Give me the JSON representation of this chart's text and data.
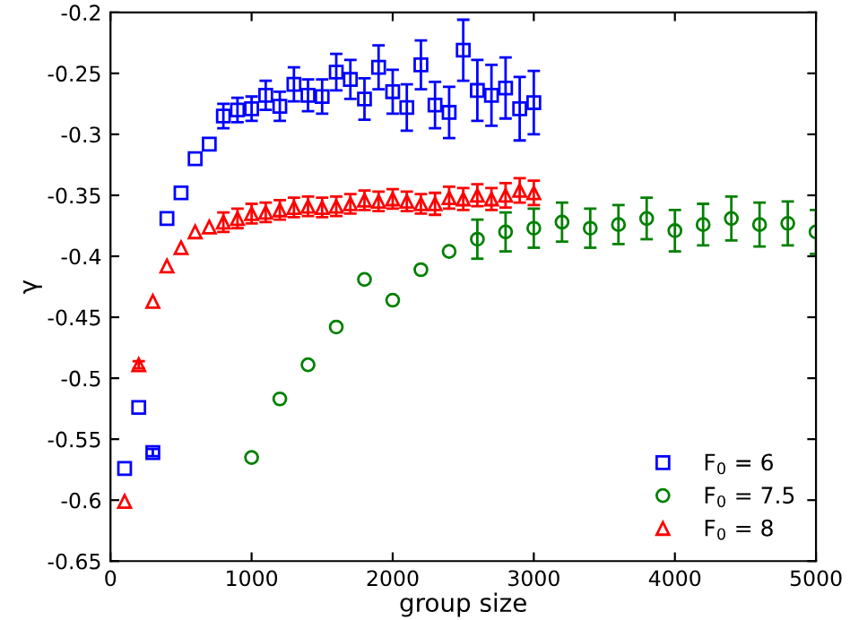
{
  "chart_data": {
    "type": "scatter",
    "xlabel": "group size",
    "ylabel": "γ",
    "xlim": [
      0,
      5000
    ],
    "xticks": [
      0,
      1000,
      2000,
      3000,
      4000,
      5000
    ],
    "ylim": [
      -0.65,
      -0.2
    ],
    "yticks": [
      {
        "value": -0.65,
        "label": "-0.65"
      },
      {
        "value": -0.6,
        "label": "-0.6"
      },
      {
        "value": -0.55,
        "label": "-0.55"
      },
      {
        "value": -0.5,
        "label": "-0.5"
      },
      {
        "value": -0.45,
        "label": "-0.45"
      },
      {
        "value": -0.4,
        "label": "-0.4"
      },
      {
        "value": -0.35,
        "label": "-0.35"
      },
      {
        "value": -0.3,
        "label": "-0.3"
      },
      {
        "value": -0.25,
        "label": "-0.25"
      },
      {
        "value": -0.2,
        "label": "-0.2"
      }
    ],
    "grid": false,
    "legend": "bottom right",
    "series": [
      {
        "name": "F$_{0}$ = 6",
        "color": "#0000ff",
        "marker": "square",
        "x": [
          100,
          200,
          300,
          400,
          500,
          600,
          700,
          800,
          900,
          1000,
          1100,
          1200,
          1300,
          1400,
          1500,
          1600,
          1700,
          1800,
          1900,
          2000,
          2100,
          2200,
          2300,
          2400,
          2500,
          2600,
          2700,
          2800,
          2900,
          3000
        ],
        "values": [
          -0.574,
          -0.524,
          -0.561,
          -0.369,
          -0.348,
          -0.32,
          -0.308,
          -0.285,
          -0.28,
          -0.279,
          -0.268,
          -0.277,
          -0.259,
          -0.268,
          -0.269,
          -0.249,
          -0.255,
          -0.271,
          -0.245,
          -0.265,
          -0.278,
          -0.243,
          -0.276,
          -0.282,
          -0.231,
          -0.264,
          -0.268,
          -0.262,
          -0.279,
          -0.274
        ],
        "errors": [
          null,
          null,
          0.003,
          null,
          null,
          null,
          null,
          0.01,
          0.01,
          0.01,
          0.012,
          0.012,
          0.014,
          0.013,
          0.014,
          0.015,
          0.016,
          0.017,
          0.018,
          0.018,
          0.019,
          0.02,
          0.019,
          0.021,
          0.025,
          0.025,
          0.025,
          0.025,
          0.026,
          0.026
        ]
      },
      {
        "name": "F$_{0}$ = 7.5",
        "color": "#008000",
        "marker": "circle",
        "x": [
          1000,
          1200,
          1400,
          1600,
          1800,
          2000,
          2200,
          2400,
          2600,
          2800,
          3000,
          3200,
          3400,
          3600,
          3800,
          4000,
          4200,
          4400,
          4600,
          4800,
          5000
        ],
        "values": [
          -0.565,
          -0.517,
          -0.489,
          -0.458,
          -0.419,
          -0.436,
          -0.411,
          -0.396,
          -0.386,
          -0.38,
          -0.377,
          -0.372,
          -0.377,
          -0.374,
          -0.369,
          -0.379,
          -0.374,
          -0.369,
          -0.374,
          -0.373,
          -0.38
        ],
        "errors": [
          null,
          null,
          null,
          null,
          null,
          null,
          null,
          null,
          0.016,
          0.016,
          0.016,
          0.016,
          0.016,
          0.016,
          0.017,
          0.017,
          0.017,
          0.018,
          0.018,
          0.018,
          0.018
        ]
      },
      {
        "name": "F$_{0}$ = 8",
        "color": "#ff0000",
        "marker": "triangle",
        "x": [
          100,
          200,
          300,
          400,
          500,
          600,
          700,
          800,
          900,
          1000,
          1100,
          1200,
          1300,
          1400,
          1500,
          1600,
          1700,
          1800,
          1900,
          2000,
          2100,
          2200,
          2300,
          2400,
          2500,
          2600,
          2700,
          2800,
          2900,
          3000
        ],
        "values": [
          -0.601,
          -0.489,
          -0.437,
          -0.408,
          -0.393,
          -0.38,
          -0.376,
          -0.372,
          -0.369,
          -0.365,
          -0.364,
          -0.362,
          -0.36,
          -0.359,
          -0.36,
          -0.359,
          -0.357,
          -0.354,
          -0.355,
          -0.353,
          -0.355,
          -0.357,
          -0.357,
          -0.352,
          -0.353,
          -0.35,
          -0.353,
          -0.35,
          -0.346,
          -0.348
        ],
        "errors": [
          null,
          0.003,
          null,
          null,
          null,
          null,
          null,
          0.008,
          0.008,
          0.008,
          0.008,
          0.008,
          0.008,
          0.008,
          0.008,
          0.008,
          0.008,
          0.008,
          0.008,
          0.008,
          0.008,
          0.008,
          0.009,
          0.009,
          0.009,
          0.009,
          0.009,
          0.01,
          0.01,
          0.01
        ]
      }
    ]
  }
}
